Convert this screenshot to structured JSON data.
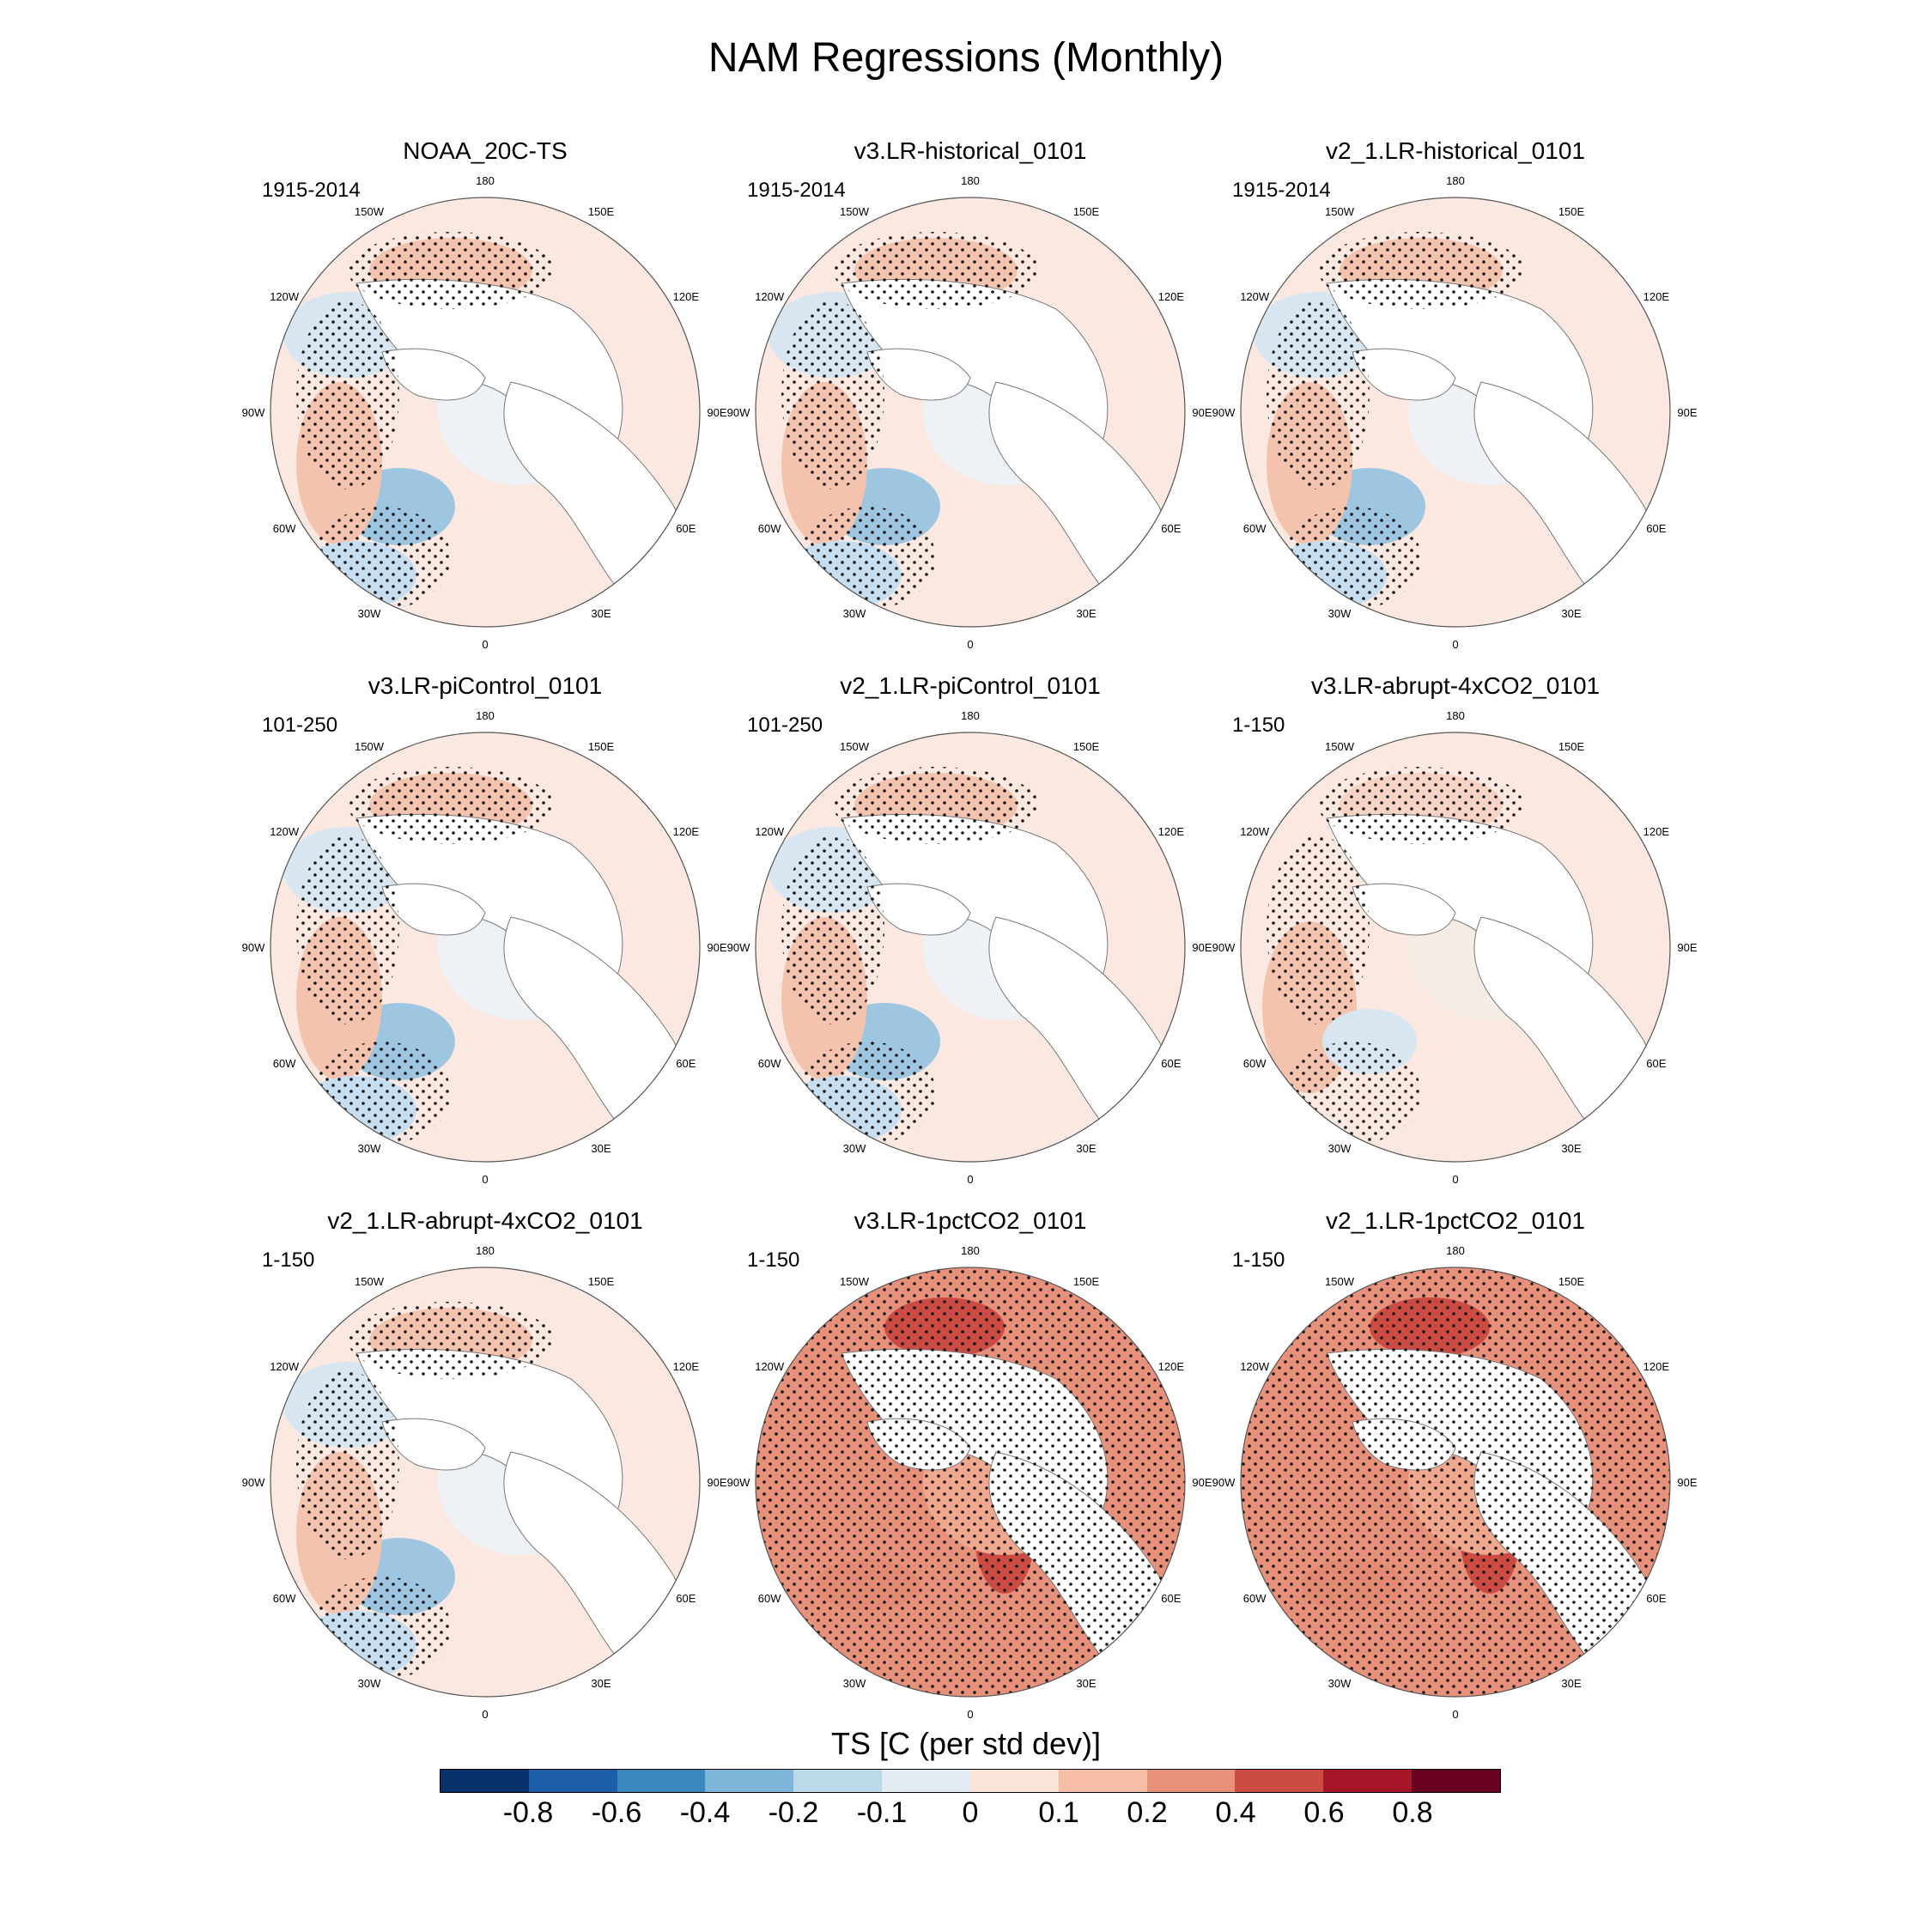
{
  "title": "NAM Regressions (Monthly)",
  "panels": [
    {
      "title": "NOAA_20C-TS",
      "period": "1915-2014",
      "pattern": "weak"
    },
    {
      "title": "v3.LR-historical_0101",
      "period": "1915-2014",
      "pattern": "weak"
    },
    {
      "title": "v2_1.LR-historical_0101",
      "period": "1915-2014",
      "pattern": "weak"
    },
    {
      "title": "v3.LR-piControl_0101",
      "period": "101-250",
      "pattern": "weak"
    },
    {
      "title": "v2_1.LR-piControl_0101",
      "period": "101-250",
      "pattern": "weak"
    },
    {
      "title": "v3.LR-abrupt-4xCO2_0101",
      "period": "1-150",
      "pattern": "mild"
    },
    {
      "title": "v2_1.LR-abrupt-4xCO2_0101",
      "period": "1-150",
      "pattern": "weak"
    },
    {
      "title": "v3.LR-1pctCO2_0101",
      "period": "1-150",
      "pattern": "warm"
    },
    {
      "title": "v2_1.LR-1pctCO2_0101",
      "period": "1-150",
      "pattern": "warm"
    }
  ],
  "lon_labels": [
    "180",
    "150E",
    "120E",
    "90E",
    "60E",
    "30E",
    "0",
    "30W",
    "60W",
    "90W",
    "120W",
    "150W"
  ],
  "colorbar": {
    "title": "TS [C (per std dev)]",
    "ticks": [
      "-0.8",
      "-0.6",
      "-0.4",
      "-0.2",
      "-0.1",
      "0",
      "0.1",
      "0.2",
      "0.4",
      "0.6",
      "0.8"
    ],
    "colors": [
      "#08306b",
      "#1c5ea8",
      "#3a87c0",
      "#7eb6d9",
      "#bcd9ea",
      "#e3ecf3",
      "#fbe3d7",
      "#f6bea6",
      "#e8917a",
      "#cc4c44",
      "#a51728",
      "#6a0020"
    ]
  }
}
